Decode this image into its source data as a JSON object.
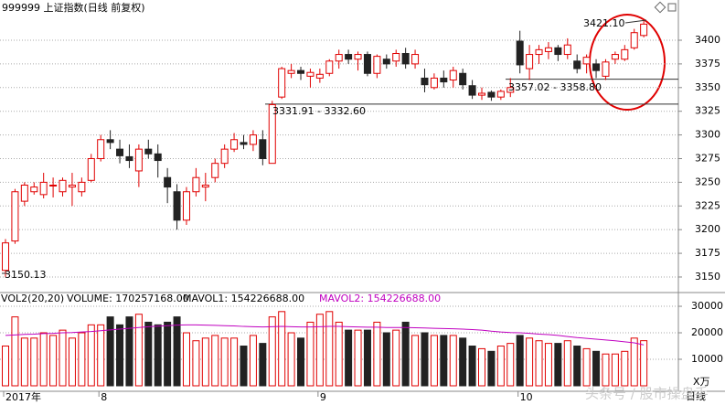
{
  "title": "999999 上证指数(日线 前复权)",
  "chart_data": [
    {
      "type": "candlestick",
      "up_color": "#e00000",
      "down_color": "#222222",
      "ylim": [
        3135.5,
        3425.1
      ],
      "yticks": [
        3150,
        3175,
        3200,
        3225,
        3250,
        3275,
        3300,
        3325,
        3350,
        3375,
        3400
      ],
      "grid": true,
      "xticks": [
        {
          "value": 0,
          "label": "2017年"
        },
        {
          "value": 10,
          "label": "8"
        },
        {
          "value": 33,
          "label": "9"
        },
        {
          "value": 54,
          "label": "10"
        }
      ],
      "open": [
        3157,
        3188,
        3230,
        3240,
        3237,
        3247,
        3240,
        3245,
        3240,
        3252,
        3275,
        3295,
        3285,
        3277,
        3262,
        3285,
        3280,
        3255,
        3240,
        3210,
        3240,
        3245,
        3255,
        3270,
        3285,
        3292,
        3290,
        3295,
        3270,
        3340,
        3365,
        3368,
        3362,
        3360,
        3365,
        3378,
        3385,
        3380,
        3385,
        3365,
        3380,
        3378,
        3386,
        3375,
        3360,
        3350,
        3360,
        3358,
        3365,
        3352,
        3342,
        3345,
        3340,
        3345,
        3399,
        3370,
        3385,
        3388,
        3392,
        3385,
        3378,
        3375,
        3375,
        3362,
        3380,
        3380,
        3392,
        3405
      ],
      "high": [
        3190,
        3243,
        3250,
        3250,
        3260,
        3255,
        3255,
        3260,
        3255,
        3280,
        3300,
        3305,
        3295,
        3290,
        3290,
        3295,
        3290,
        3265,
        3248,
        3245,
        3265,
        3260,
        3275,
        3290,
        3302,
        3300,
        3305,
        3305,
        3336,
        3372,
        3375,
        3372,
        3370,
        3370,
        3380,
        3390,
        3390,
        3388,
        3388,
        3385,
        3385,
        3390,
        3392,
        3390,
        3370,
        3365,
        3368,
        3372,
        3370,
        3358,
        3350,
        3347,
        3348,
        3360,
        3410,
        3395,
        3395,
        3398,
        3395,
        3402,
        3385,
        3385,
        3380,
        3380,
        3388,
        3395,
        3412,
        3421.1
      ],
      "low": [
        3150.13,
        3185,
        3225,
        3237,
        3233,
        3234,
        3235,
        3225,
        3235,
        3250,
        3272,
        3285,
        3270,
        3265,
        3245,
        3275,
        3255,
        3228,
        3200,
        3205,
        3235,
        3230,
        3250,
        3265,
        3282,
        3285,
        3283,
        3268,
        3270,
        3338,
        3360,
        3358,
        3350,
        3355,
        3362,
        3370,
        3375,
        3368,
        3362,
        3360,
        3370,
        3372,
        3370,
        3370,
        3345,
        3348,
        3350,
        3350,
        3348,
        3338,
        3337,
        3336,
        3337,
        3340,
        3365,
        3358,
        3375,
        3380,
        3378,
        3380,
        3365,
        3365,
        3360,
        3358,
        3375,
        3378,
        3390,
        3403
      ],
      "close": [
        3186,
        3240,
        3247,
        3245,
        3250,
        3247,
        3252,
        3247,
        3250,
        3275,
        3295,
        3292,
        3278,
        3273,
        3285,
        3280,
        3273,
        3245,
        3210,
        3240,
        3255,
        3247,
        3270,
        3285,
        3295,
        3290,
        3300,
        3275,
        3332,
        3370,
        3368,
        3365,
        3366,
        3364,
        3378,
        3385,
        3380,
        3385,
        3365,
        3383,
        3375,
        3386,
        3375,
        3385,
        3353,
        3360,
        3356,
        3368,
        3353,
        3342,
        3344,
        3340,
        3346,
        3350,
        3374,
        3385,
        3390,
        3392,
        3385,
        3395,
        3370,
        3382,
        3368,
        3377,
        3385,
        3390,
        3408,
        3417
      ],
      "levels": [
        3358.8,
        3332.6
      ],
      "annotations": [
        "3421.10",
        "3357.02 - 3358.80",
        "3331.91 - 3332.60",
        "3150.13"
      ]
    },
    {
      "type": "volume",
      "unit_label": "X万",
      "ylim": [
        0,
        30700
      ],
      "yticks": [
        10000,
        20000,
        30000
      ],
      "grid": true,
      "header": [
        "VOL2(20,20)",
        "VOLUME: 170257168.00",
        "MAVOL1: 154226688.00",
        "MAVOL2: 154226688.00"
      ],
      "values": [
        15000,
        26000,
        18000,
        18000,
        20000,
        19000,
        21000,
        18000,
        20000,
        23000,
        23000,
        26000,
        23000,
        26000,
        27000,
        24000,
        23000,
        24000,
        26000,
        20000,
        17000,
        18000,
        19000,
        18000,
        18000,
        15000,
        19000,
        16000,
        26000,
        28000,
        20000,
        18000,
        24000,
        27000,
        28000,
        24000,
        21000,
        21000,
        21000,
        24000,
        20000,
        21000,
        24000,
        19000,
        20000,
        19000,
        19000,
        19000,
        18000,
        15000,
        14000,
        13000,
        15000,
        16000,
        19000,
        18000,
        17000,
        16000,
        16000,
        17000,
        15000,
        14000,
        13000,
        12000,
        12000,
        13000,
        18000,
        17025.7168
      ],
      "ma": {
        "color": "#c000c0",
        "values": [
          19000,
          19200,
          19400,
          19500,
          19700,
          19800,
          20000,
          20100,
          20300,
          20500,
          20800,
          21100,
          21400,
          21700,
          22000,
          22300,
          22500,
          22700,
          22900,
          23000,
          23000,
          22900,
          22800,
          22700,
          22600,
          22400,
          22300,
          22200,
          22300,
          22400,
          22300,
          22200,
          22200,
          22300,
          22400,
          22400,
          22300,
          22200,
          22100,
          22100,
          22000,
          22000,
          22000,
          21900,
          21800,
          21700,
          21600,
          21500,
          21400,
          21200,
          21000,
          20600,
          20300,
          20100,
          20000,
          19800,
          19500,
          19300,
          19000,
          18600,
          18200,
          17900,
          17600,
          17300,
          17000,
          16600,
          16200,
          15422.6688
        ]
      }
    }
  ],
  "footer": {
    "period": "日线",
    "watermark": "头条号 / 股市操盘手"
  }
}
